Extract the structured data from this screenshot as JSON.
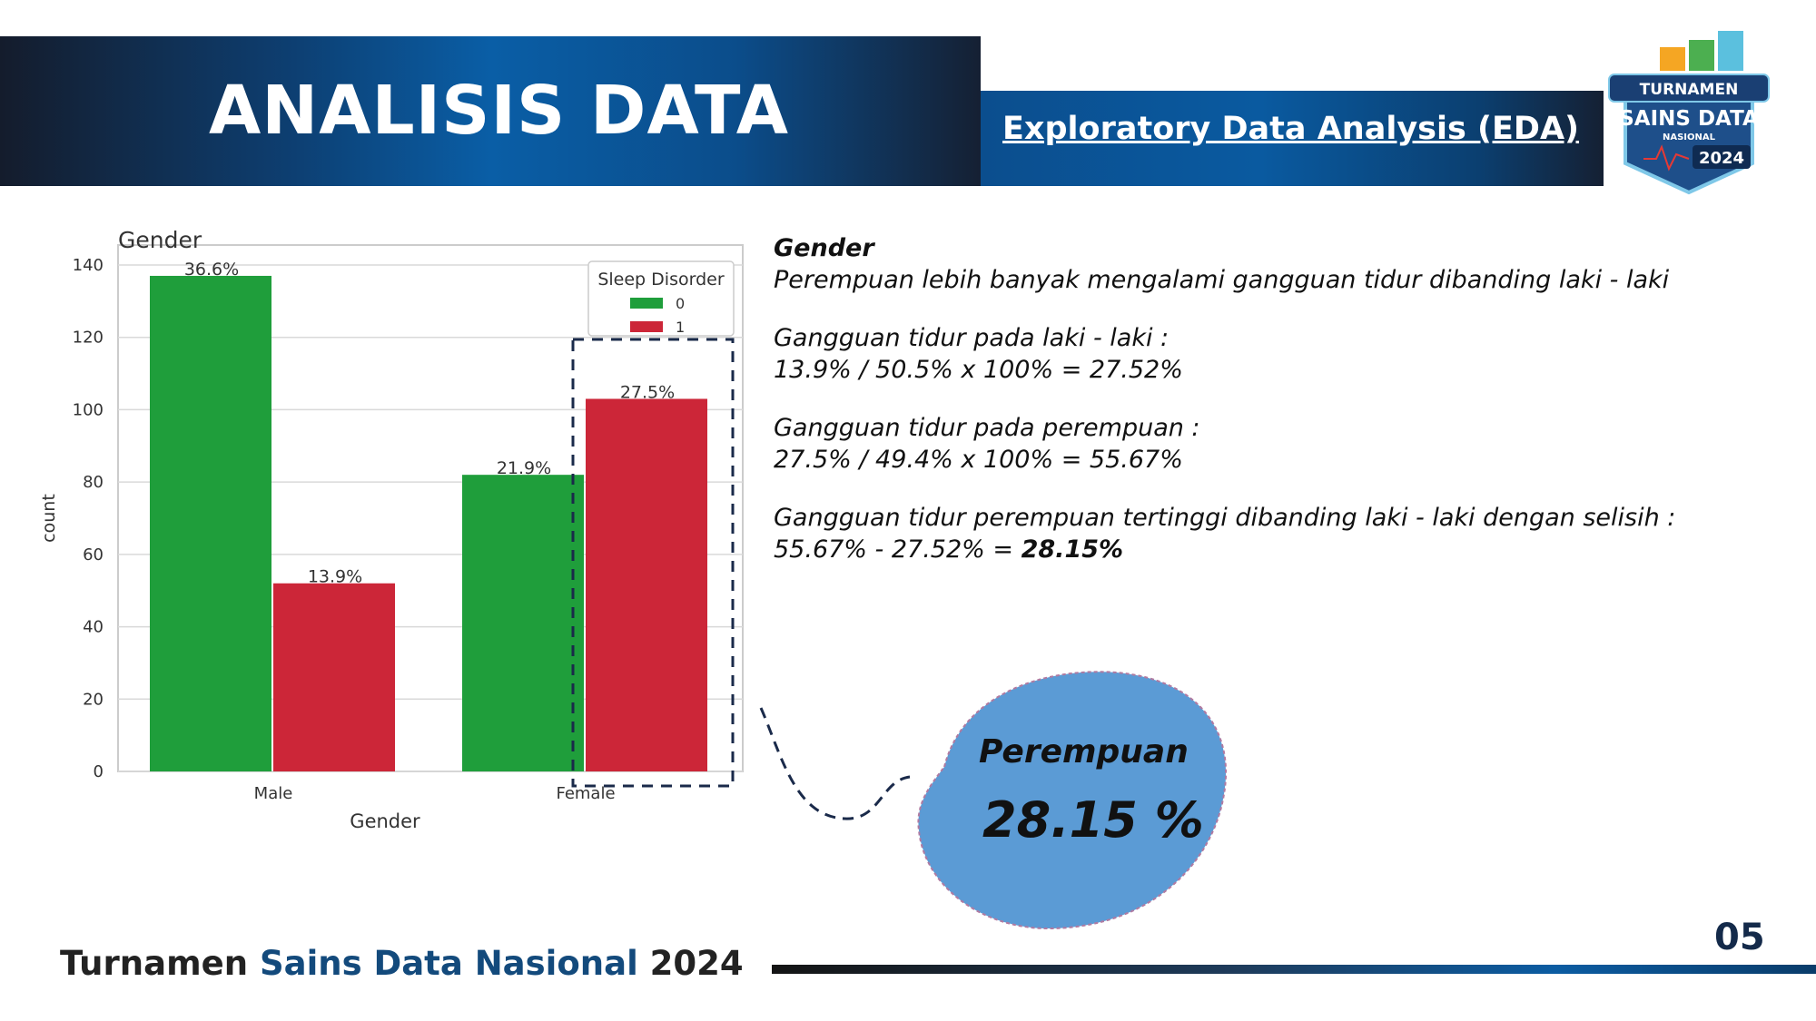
{
  "header": {
    "title": "ANALISIS DATA",
    "subtitle": "Exploratory Data Analysis (EDA)",
    "logo": {
      "line1": "TURNAMEN",
      "line2": "SAINS DATA",
      "line3": "NASIONAL",
      "year": "2024",
      "colors": [
        "#f5a623",
        "#4caf50",
        "#5bc0de",
        "#1e4f8a"
      ]
    }
  },
  "chart_data": {
    "type": "bar",
    "title": "Gender",
    "xlabel": "Gender",
    "ylabel": "count",
    "categories": [
      "Male",
      "Female"
    ],
    "series": [
      {
        "name": "0",
        "color": "#1f9e3b",
        "values": [
          137,
          82
        ],
        "labels": [
          "36.6%",
          "21.9%"
        ]
      },
      {
        "name": "1",
        "color": "#cc2638",
        "values": [
          52,
          103
        ],
        "labels": [
          "13.9%",
          "27.5%"
        ]
      }
    ],
    "ylim": [
      0,
      140
    ],
    "yticks": [
      "0",
      "20",
      "40",
      "60",
      "80",
      "100",
      "120",
      "140"
    ],
    "legend": {
      "title": "Sleep Disorder",
      "position": "top-right"
    },
    "grid": true,
    "highlight": "Female / 1"
  },
  "description": {
    "heading": "Gender",
    "intro": "Perempuan lebih banyak mengalami gangguan tidur dibanding laki - laki",
    "male_label": "Gangguan tidur pada laki - laki :",
    "male_calc": "13.9% / 50.5% x 100% = 27.52%",
    "female_label": "Gangguan tidur pada perempuan :",
    "female_calc": "27.5% / 49.4% x 100% = 55.67%",
    "conclusion": "Gangguan tidur perempuan tertinggi dibanding laki - laki dengan selisih :",
    "diff_calc": "55.67% - 27.52% = ",
    "diff_result": "28.15%"
  },
  "callout": {
    "label": "Perempuan",
    "value": "28.15 %",
    "color": "#5b9bd5"
  },
  "footer": {
    "text_part1": "Turnamen ",
    "text_part2": "Sains Data Nasional",
    "text_part3": " 2024",
    "page_number": "05"
  }
}
